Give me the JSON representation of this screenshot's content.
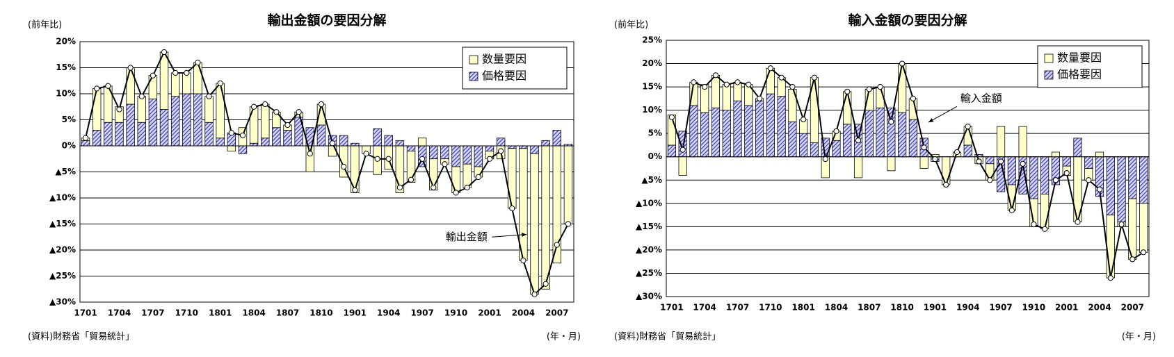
{
  "chart_data": [
    {
      "type": "bar",
      "stacked": true,
      "title": "輸出金額の要因分解",
      "y_label": "(前年比)",
      "x_label": "(年・月)",
      "source": "(資料)財務省「貿易統計」",
      "grid": true,
      "legend": "upper right",
      "categories": [
        "1701",
        null,
        null,
        "1704",
        null,
        null,
        "1707",
        null,
        null,
        "1710",
        null,
        null,
        "1801",
        null,
        null,
        "1804",
        null,
        null,
        "1807",
        null,
        null,
        "1810",
        null,
        null,
        "1901",
        null,
        null,
        "1904",
        null,
        null,
        "1907",
        null,
        null,
        "1910",
        null,
        null,
        "2001",
        null,
        null,
        "2004",
        null,
        null,
        "2007",
        null
      ],
      "series": [
        {
          "name": "数量要因",
          "type": "bar",
          "color": "#ffffcc",
          "values": [
            0.5,
            8,
            7,
            3,
            7,
            5,
            4.5,
            11,
            4.5,
            4,
            6,
            5,
            10.5,
            -1,
            3.5,
            7,
            6.5,
            3,
            1,
            1,
            -5,
            4,
            -2,
            -6,
            -9,
            -1.5,
            -5.5,
            -4.5,
            -9,
            -6,
            1.5,
            -6,
            -1,
            -5,
            -4.5,
            -2,
            -1.5,
            -2.5,
            -11.5,
            -21.5,
            -27,
            -27.5,
            -22.5,
            -15
          ]
        },
        {
          "name": "価格要因",
          "type": "bar",
          "color": "#3838b0",
          "values": [
            1,
            3,
            4.5,
            4.5,
            8,
            4.5,
            9,
            7,
            9.5,
            10,
            10,
            4.5,
            1.5,
            2.5,
            -1.5,
            0.5,
            1.5,
            3.5,
            3,
            5.5,
            3.5,
            4,
            2,
            2,
            0.5,
            0,
            3.3,
            2,
            1,
            -1,
            -4,
            -2.5,
            -2.5,
            -4,
            -3.5,
            -4,
            -1,
            1.5,
            -0.5,
            -0.5,
            -1.5,
            1,
            3,
            0.3
          ]
        },
        {
          "name": "輸出金額",
          "type": "line",
          "color": "#000000",
          "values": [
            1.5,
            11,
            11.5,
            7,
            15,
            9.5,
            13.5,
            18,
            14,
            14,
            16,
            9.5,
            12,
            2.5,
            2,
            7.5,
            8,
            6.5,
            4,
            6.5,
            -1.5,
            8,
            0.5,
            -4,
            -8.5,
            -1.5,
            -2.5,
            -2.5,
            -8,
            -6.5,
            -2.5,
            -8,
            -3.5,
            -9,
            -8,
            -6,
            -2.5,
            -1,
            -12,
            -22,
            -28.5,
            -26.5,
            -19,
            -15
          ]
        }
      ],
      "ylim": [
        -30,
        20
      ],
      "yticks": [
        {
          "value": 20,
          "label": "20%"
        },
        {
          "value": 15,
          "label": "15%"
        },
        {
          "value": 10,
          "label": "10%"
        },
        {
          "value": 5,
          "label": "5%"
        },
        {
          "value": 0,
          "label": "0%"
        },
        {
          "value": -5,
          "label": "▲5%"
        },
        {
          "value": -10,
          "label": "▲10%"
        },
        {
          "value": -15,
          "label": "▲15%"
        },
        {
          "value": -20,
          "label": "▲20%"
        },
        {
          "value": -25,
          "label": "▲25%"
        },
        {
          "value": -30,
          "label": "▲30%"
        }
      ]
    },
    {
      "type": "bar",
      "stacked": true,
      "title": "輸入金額の要因分解",
      "y_label": "(前年比)",
      "x_label": "(年・月)",
      "source": "(資料)財務省「貿易統計」",
      "grid": true,
      "legend": "upper right",
      "categories": [
        "1701",
        null,
        null,
        "1704",
        null,
        null,
        "1707",
        null,
        null,
        "1710",
        null,
        null,
        "1801",
        null,
        null,
        "1804",
        null,
        null,
        "1807",
        null,
        null,
        "1810",
        null,
        null,
        "1901",
        null,
        null,
        "1904",
        null,
        null,
        "1907",
        null,
        null,
        "1910",
        null,
        null,
        "2001",
        null,
        null,
        "2004",
        null,
        null,
        "2007",
        null
      ],
      "series": [
        {
          "name": "数量要因",
          "type": "bar",
          "color": "#ffffcc",
          "values": [
            6.5,
            -4,
            5,
            6,
            7,
            5.5,
            4,
            4.5,
            0.5,
            5.5,
            4,
            7,
            3,
            14,
            -4.5,
            2,
            7,
            -4.5,
            4.5,
            4.5,
            -3,
            10.5,
            4.5,
            -2.5,
            0.5,
            -6,
            1,
            4,
            -1.5,
            -3.5,
            6.5,
            -5.5,
            6.5,
            -6,
            -7.5,
            1,
            -2,
            -14,
            -2.5,
            1,
            -13.5,
            -1,
            -13,
            -10.5
          ]
        },
        {
          "name": "価格要因",
          "type": "bar",
          "color": "#3838b0",
          "values": [
            2.5,
            5.5,
            11,
            9.5,
            10.5,
            10,
            12,
            11,
            12,
            13.5,
            13,
            7.5,
            5,
            3,
            4,
            3.5,
            7,
            7,
            10,
            10.5,
            10.5,
            9.5,
            8,
            4,
            -1,
            0,
            0,
            2.5,
            0.5,
            -1.5,
            -7.5,
            -6,
            -8,
            -9,
            -8,
            -6,
            -2,
            4,
            -2.5,
            -8.5,
            -12.5,
            -14,
            -9,
            -10
          ]
        },
        {
          "name": "輸入金額",
          "type": "line",
          "color": "#000000",
          "values": [
            8.5,
            1.5,
            16,
            15,
            17.5,
            15.5,
            16,
            15.5,
            12.5,
            19,
            17,
            15,
            8,
            17,
            -0.5,
            5.5,
            14,
            3.5,
            14.5,
            15,
            7.5,
            20,
            12.5,
            2,
            -0.5,
            -6,
            1,
            6.5,
            -1,
            -5,
            -1,
            -11.5,
            -1.5,
            -14.5,
            -15.5,
            -5,
            -3.5,
            -14,
            -5,
            -7,
            -26,
            -14.5,
            -22,
            -20.5
          ]
        }
      ],
      "ylim": [
        -30,
        25
      ],
      "yticks": [
        {
          "value": 25,
          "label": "25%"
        },
        {
          "value": 20,
          "label": "20%"
        },
        {
          "value": 15,
          "label": "15%"
        },
        {
          "value": 10,
          "label": "10%"
        },
        {
          "value": 5,
          "label": "5%"
        },
        {
          "value": 0,
          "label": "0%"
        },
        {
          "value": -5,
          "label": "▲5%"
        },
        {
          "value": -10,
          "label": "▲10%"
        },
        {
          "value": -15,
          "label": "▲15%"
        },
        {
          "value": -20,
          "label": "▲20%"
        },
        {
          "value": -25,
          "label": "▲25%"
        },
        {
          "value": -30,
          "label": "▲30%"
        }
      ]
    }
  ]
}
